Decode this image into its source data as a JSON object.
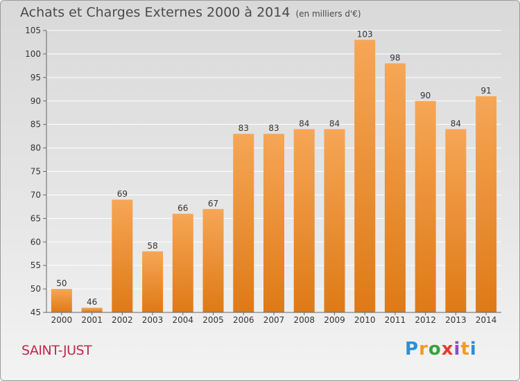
{
  "title": "Achats et Charges Externes 2000 à 2014",
  "subtitle": "(en milliers d'€)",
  "location": "SAINT-JUST",
  "logo": {
    "text": "Proxiti",
    "letters": [
      "P",
      "r",
      "o",
      "x",
      "i",
      "t",
      "i"
    ],
    "colors": [
      "#2b8fd6",
      "#f39a1e",
      "#37a23d",
      "#e63c2f",
      "#8a4fbf",
      "#f39a1e",
      "#2b8fd6"
    ]
  },
  "colors": {
    "bar_top": "#f6a656",
    "bar_bottom": "#de7a16",
    "grid": "#ffffff",
    "axis_text": "#333333"
  },
  "chart_data": {
    "type": "bar",
    "categories": [
      "2000",
      "2001",
      "2002",
      "2003",
      "2004",
      "2005",
      "2006",
      "2007",
      "2008",
      "2009",
      "2010",
      "2011",
      "2012",
      "2013",
      "2014"
    ],
    "values": [
      50,
      46,
      69,
      58,
      66,
      67,
      83,
      83,
      84,
      84,
      103,
      98,
      90,
      84,
      91
    ],
    "title": "Achats et Charges Externes 2000 à 2014",
    "subtitle": "(en milliers d'€)",
    "xlabel": "",
    "ylabel": "",
    "ylim": [
      45,
      105
    ],
    "yticks": [
      45,
      50,
      55,
      60,
      65,
      70,
      75,
      80,
      85,
      90,
      95,
      100,
      105
    ],
    "grid": true,
    "data_labels": true
  }
}
